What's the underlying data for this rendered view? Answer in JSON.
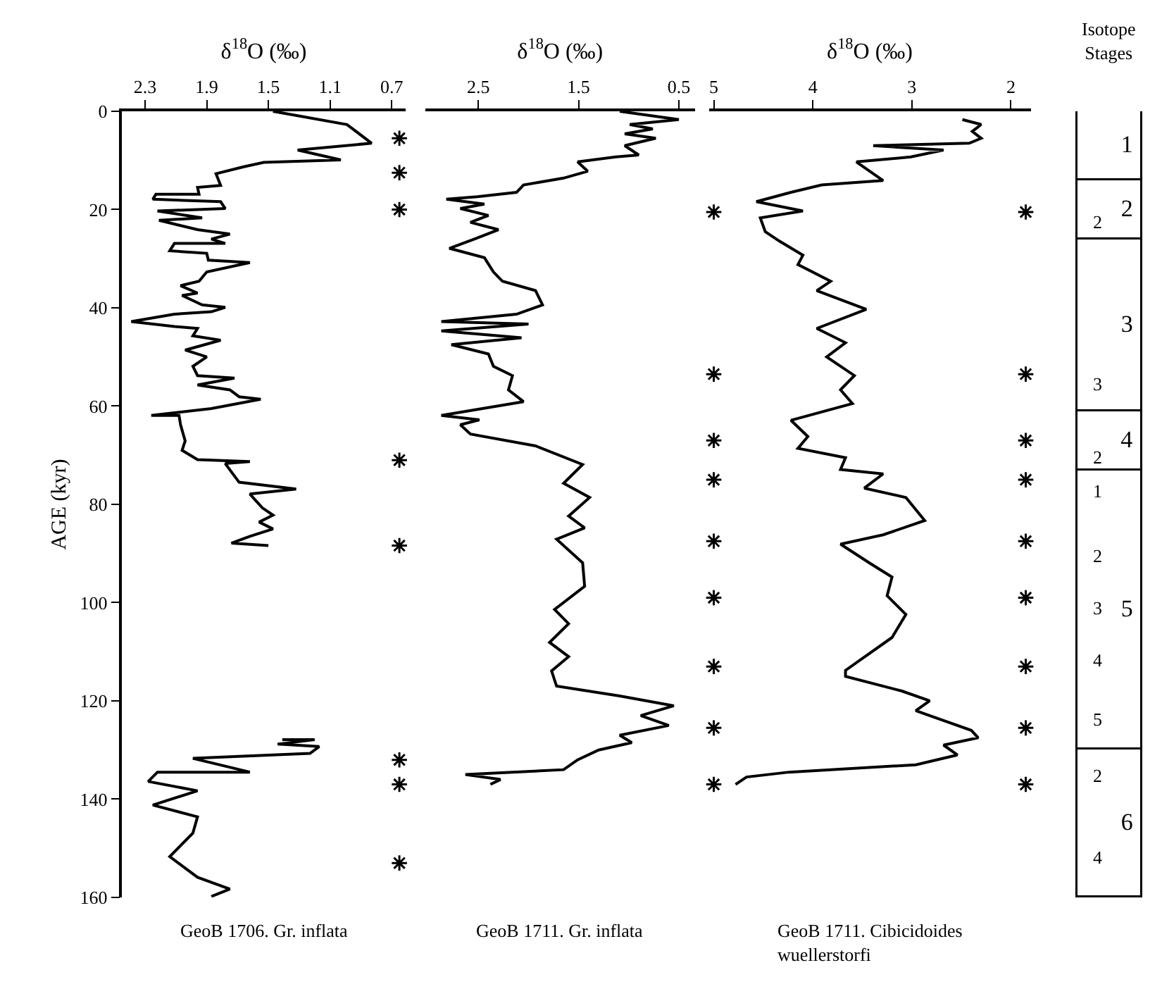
{
  "chart_data": [
    {
      "type": "line",
      "xlabel": "δ$^{18}$O (‰)",
      "ylabel": "AGE (kyr)",
      "xlim": [
        2.45,
        0.61
      ],
      "xticks": [
        2.3,
        1.9,
        1.5,
        1.1,
        0.7
      ],
      "ylim": [
        160,
        0
      ],
      "yticks": [
        0,
        20,
        40,
        60,
        80,
        100,
        120,
        140,
        160
      ],
      "grid": false,
      "annotations": [
        "GeoB 1706. Gr. inflata"
      ],
      "series": [
        {
          "color": "#000000",
          "marker": "none",
          "x": [
            1.47,
            0.99,
            0.83,
            1.31,
            1.03,
            1.53,
            1.66,
            1.84,
            1.81,
            1.96,
            1.95,
            2.23,
            2.25,
            1.81,
            1.78,
            2.22,
            1.93,
            2.21,
            1.96,
            1.75,
            1.87,
            1.78,
            2.11,
            2.14,
            1.9,
            1.89,
            1.62,
            1.9,
            1.95,
            2.07,
            1.96,
            2.06,
            1.93,
            1.78,
            1.87,
            2.11,
            2.39,
            2.11,
            1.96,
            1.99,
            1.81,
            2.04,
            1.9,
            1.99,
            1.96,
            1.72,
            1.96,
            1.75,
            1.69,
            1.55,
            1.87,
            2.26,
            2.08,
            2.07,
            2.04,
            2.06,
            1.96,
            1.62,
            1.78,
            1.69,
            1.32,
            1.62,
            1.54,
            1.47,
            1.56,
            1.47,
            1.62,
            1.74,
            1.5,
            null,
            1.41,
            1.2,
            1.44,
            1.17,
            1.23,
            1.99,
            1.87,
            1.62,
            2.22,
            2.28,
            1.96,
            2.25,
            1.96,
            1.99,
            2.14,
            1.96,
            1.75,
            1.87
          ],
          "values": [
            0,
            2.7,
            6.5,
            7.9,
            9.9,
            10.4,
            11.3,
            12.7,
            15.1,
            15.5,
            16.9,
            16.9,
            17.9,
            18.4,
            19.8,
            20.3,
            21.7,
            22.2,
            24.1,
            25.0,
            26.0,
            26.9,
            26.9,
            28.4,
            28.9,
            30.3,
            30.8,
            32.7,
            34.6,
            35.5,
            37.0,
            37.5,
            39.4,
            39.9,
            40.8,
            41.3,
            42.8,
            43.8,
            44.2,
            45.7,
            46.6,
            48.6,
            50.0,
            51.9,
            53.8,
            54.3,
            55.7,
            56.7,
            58.1,
            58.6,
            60.5,
            61.9,
            61.9,
            63.8,
            67.1,
            69.0,
            70.9,
            71.3,
            71.7,
            75.5,
            76.9,
            77.9,
            80.7,
            82.2,
            83.6,
            85.0,
            86.5,
            87.9,
            88.4,
            null,
            127.9,
            127.9,
            128.8,
            129.3,
            130.7,
            131.7,
            132.6,
            134.5,
            134.5,
            136.4,
            138.3,
            141.2,
            143.6,
            146.9,
            151.7,
            155.9,
            158.3,
            159.8
          ]
        },
        {
          "type": "scatter",
          "color": "#000000",
          "marker": "cross",
          "x": [
            0.65,
            0.65,
            0.65,
            0.65,
            0.65,
            0.65,
            0.65,
            0.65
          ],
          "values": [
            5.5,
            12.5,
            20,
            71,
            88.4,
            132,
            137,
            153
          ]
        }
      ]
    },
    {
      "type": "line",
      "xlabel": "δ$^{18}$O (‰)",
      "xlim": [
        3.03,
        0.34
      ],
      "xticks": [
        2.5,
        1.5,
        0.5
      ],
      "ylim": [
        160,
        0
      ],
      "tick_labels": "x",
      "grid": false,
      "annotations": [
        "GeoB 1711. Gr. inflata"
      ],
      "series": [
        {
          "color": "#000000",
          "marker": "none",
          "x": [
            1.09,
            0.5,
            0.99,
            0.76,
            1.04,
            0.73,
            1.04,
            0.9,
            1.13,
            1.51,
            1.41,
            1.65,
            2.05,
            2.12,
            2.51,
            2.82,
            2.44,
            2.68,
            2.4,
            2.58,
            2.3,
            2.54,
            2.79,
            2.44,
            2.35,
            2.26,
            1.93,
            1.86,
            2.12,
            2.87,
            2.0,
            2.87,
            2.07,
            2.77,
            2.4,
            2.35,
            2.16,
            2.2,
            2.05,
            2.87,
            2.49,
            2.68,
            2.58,
            1.93,
            1.46,
            1.65,
            1.39,
            1.6,
            1.44,
            1.72,
            1.46,
            1.44,
            1.74,
            1.6,
            1.79,
            1.6,
            1.77,
            1.72,
            1.09,
            0.55,
            0.88,
            0.6,
            1.09,
            0.97,
            1.3,
            1.51,
            1.65,
            2.63,
            2.28,
            2.38
          ],
          "values": [
            0,
            1.7,
            2.7,
            3.6,
            4.6,
            5.5,
            7.0,
            8.9,
            9.3,
            10.3,
            12.2,
            13.6,
            15.0,
            16.5,
            17.4,
            17.9,
            18.9,
            19.8,
            21.2,
            22.6,
            24.1,
            26.0,
            27.9,
            29.8,
            32.7,
            34.6,
            36.5,
            39.4,
            41.3,
            42.8,
            43.3,
            44.7,
            46.1,
            47.5,
            49.4,
            51.9,
            53.8,
            56.7,
            59.1,
            61.9,
            62.8,
            63.8,
            65.7,
            68.1,
            71.9,
            75.7,
            78.6,
            82.4,
            84.8,
            87.1,
            91.9,
            96.7,
            101.4,
            104.3,
            108.1,
            111.0,
            113.9,
            117,
            119,
            121,
            123,
            125,
            127,
            128.5,
            130,
            132,
            134,
            135,
            136,
            137
          ]
        }
      ]
    },
    {
      "type": "line",
      "xlabel": "δ$^{18}$O (‰)",
      "xlim": [
        5.05,
        1.8
      ],
      "xticks": [
        5,
        4,
        3,
        2
      ],
      "ylim": [
        160,
        0
      ],
      "tick_labels": "x",
      "grid": false,
      "annotations": [
        "GeoB 1711. Cibicidoides\nwuellerstorfi"
      ],
      "series": [
        {
          "color": "#000000",
          "marker": "none",
          "x": [
            2.49,
            2.3,
            2.39,
            2.3,
            2.42,
            3.39,
            2.68,
            3.01,
            3.56,
            3.29,
            3.91,
            4.22,
            4.57,
            4.1,
            4.53,
            4.48,
            4.34,
            4.1,
            4.15,
            3.82,
            3.96,
            3.46,
            3.96,
            3.67,
            3.86,
            3.58,
            3.72,
            3.6,
            4.22,
            4.05,
            4.15,
            3.67,
            3.72,
            3.29,
            3.48,
            3.06,
            2.87,
            3.29,
            3.72,
            3.43,
            3.2,
            3.25,
            3.06,
            3.2,
            3.67,
            3.67,
            3.1,
            2.82,
            2.96,
            2.68,
            2.4,
            2.33,
            2.68,
            2.54,
            2.96,
            4.24,
            4.67,
            4.78
          ],
          "values": [
            1.7,
            2.7,
            4.1,
            5.5,
            6.5,
            7.0,
            7.9,
            9.3,
            10.3,
            14.1,
            15.0,
            16.5,
            18.4,
            20.3,
            21.7,
            24.5,
            26.4,
            29.3,
            31.2,
            34.6,
            36.5,
            40.3,
            44.2,
            47.1,
            50.0,
            53.8,
            56.7,
            59.5,
            62.9,
            66.2,
            68.6,
            70.5,
            72.9,
            73.8,
            76.7,
            78.6,
            83.3,
            86.2,
            88.1,
            91.9,
            94.8,
            98.6,
            102.4,
            107.1,
            113.8,
            115,
            118,
            120,
            122,
            124,
            126,
            127.5,
            129,
            131,
            133,
            134.5,
            135.5,
            137
          ]
        },
        {
          "type": "scatter",
          "color": "#000000",
          "marker": "cross",
          "x": [
            5,
            5,
            5,
            5,
            5,
            5,
            5,
            5,
            5
          ],
          "values": [
            20.5,
            53.5,
            67,
            75,
            87.5,
            99,
            113,
            125.5,
            137
          ]
        },
        {
          "type": "scatter",
          "color": "#000000",
          "marker": "cross",
          "x": [
            1.85,
            1.85,
            1.85,
            1.85,
            1.85,
            1.85,
            1.85,
            1.85,
            1.85
          ],
          "values": [
            20.5,
            53.5,
            67,
            75,
            87.5,
            99,
            113,
            125.5,
            137
          ]
        }
      ]
    },
    {
      "type": "bar",
      "stacked": true,
      "title": "Isotope\nStages",
      "categories": [
        null
      ],
      "ylim": [
        160,
        0
      ],
      "tick_labels": false,
      "series": [
        {
          "name": "1",
          "color": "#ffffff",
          "values": [
            14
          ]
        },
        {
          "name": "2",
          "color": "#ffffff",
          "values": [
            12
          ]
        },
        {
          "name": "3",
          "color": "#ffffff",
          "values": [
            35
          ]
        },
        {
          "name": "4",
          "color": "#ffffff",
          "values": [
            12
          ]
        },
        {
          "name": "5",
          "color": "#ffffff",
          "values": [
            57
          ]
        },
        {
          "name": "6",
          "color": "#ffffff",
          "values": [
            30
          ]
        }
      ],
      "annotations": [
        "2",
        "3",
        "2",
        "1",
        "2",
        "3",
        "4",
        "5",
        "2",
        "4"
      ]
    }
  ]
}
